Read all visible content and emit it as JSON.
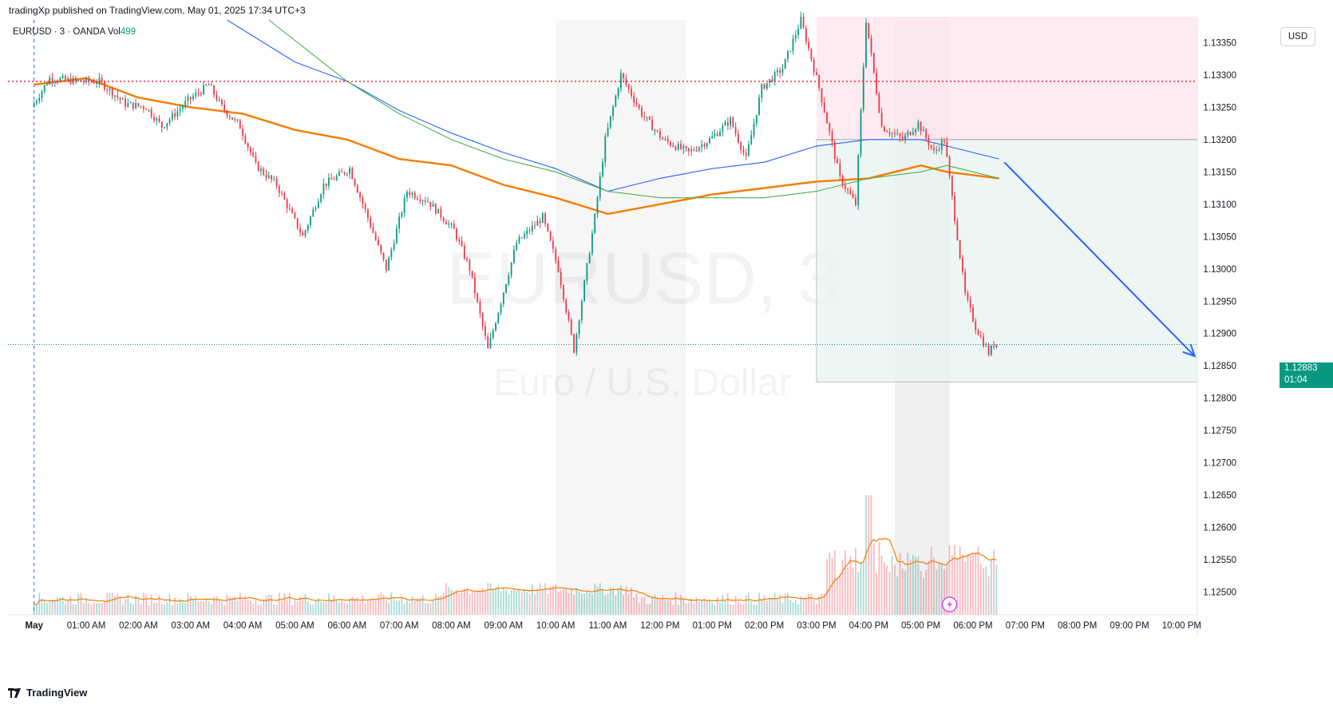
{
  "header": {
    "published": "tradingXp published on TradingView.com, May 01, 2025 17:34 UTC+3"
  },
  "legend": {
    "symbol": "EURUSD · 3 · OANDA",
    "volume_label": "Vol",
    "volume_value": "499"
  },
  "watermark": {
    "symbol": "EURUSD, 3",
    "name": "Euro / U.S. Dollar"
  },
  "currency_badge": "USD",
  "last_price": {
    "value": "1.12883",
    "countdown": "01:04"
  },
  "branding": "TradingView",
  "colors": {
    "up": "#089981",
    "down": "#f23645",
    "ma_orange": "#f57c00",
    "ma_blue": "#2962ff",
    "ma_green": "#4caf50",
    "arrow": "#2962ff",
    "stop_zone": "#fce4ec",
    "target_zone": "#e8f4f1"
  },
  "chart_data": {
    "type": "candlestick",
    "symbol": "EURUSD",
    "timeframe": "3",
    "broker": "OANDA",
    "y_axis": {
      "ylim": [
        1.12465,
        1.13385
      ],
      "ticks": [
        "1.13350",
        "1.13300",
        "1.13250",
        "1.13200",
        "1.13150",
        "1.13100",
        "1.13050",
        "1.13000",
        "1.12950",
        "1.12900",
        "1.12850",
        "1.12800",
        "1.12750",
        "1.12700",
        "1.12650",
        "1.12600",
        "1.12550",
        "1.12500"
      ]
    },
    "x_axis": {
      "ticks": [
        "May",
        "01:00 AM",
        "02:00 AM",
        "03:00 AM",
        "04:00 AM",
        "05:00 AM",
        "06:00 AM",
        "07:00 AM",
        "08:00 AM",
        "09:00 AM",
        "10:00 AM",
        "11:00 AM",
        "12:00 PM",
        "01:00 PM",
        "02:00 PM",
        "03:00 PM",
        "04:00 PM",
        "05:00 PM",
        "06:00 PM",
        "07:00 PM",
        "08:00 PM",
        "09:00 PM",
        "10:00 PM"
      ],
      "range_hours": [
        -0.5,
        22.3
      ]
    },
    "price_path": [
      [
        0.0,
        1.1325
      ],
      [
        0.35,
        1.13295
      ],
      [
        0.9,
        1.1329
      ],
      [
        1.3,
        1.1329
      ],
      [
        1.8,
        1.13255
      ],
      [
        2.2,
        1.1325
      ],
      [
        2.5,
        1.1322
      ],
      [
        3.0,
        1.1326
      ],
      [
        3.4,
        1.13285
      ],
      [
        3.65,
        1.1325
      ],
      [
        4.0,
        1.1322
      ],
      [
        4.3,
        1.1316
      ],
      [
        4.7,
        1.1313
      ],
      [
        5.2,
        1.1305
      ],
      [
        5.6,
        1.1313
      ],
      [
        6.1,
        1.13155
      ],
      [
        6.4,
        1.1309
      ],
      [
        6.8,
        1.13
      ],
      [
        7.2,
        1.1312
      ],
      [
        7.6,
        1.13105
      ],
      [
        8.1,
        1.1306
      ],
      [
        8.4,
        1.13
      ],
      [
        8.75,
        1.12875
      ],
      [
        9.3,
        1.1304
      ],
      [
        9.8,
        1.1308
      ],
      [
        10.1,
        1.13
      ],
      [
        10.4,
        1.12875
      ],
      [
        10.8,
        1.1308
      ],
      [
        11.0,
        1.132
      ],
      [
        11.3,
        1.133
      ],
      [
        11.7,
        1.1324
      ],
      [
        12.1,
        1.132
      ],
      [
        12.6,
        1.1318
      ],
      [
        13.0,
        1.132
      ],
      [
        13.4,
        1.1323
      ],
      [
        13.7,
        1.1317
      ],
      [
        14.0,
        1.1328
      ],
      [
        14.4,
        1.1331
      ],
      [
        14.75,
        1.13385
      ],
      [
        15.1,
        1.1328
      ],
      [
        15.5,
        1.1314
      ],
      [
        15.8,
        1.131
      ],
      [
        16.0,
        1.13385
      ],
      [
        16.3,
        1.1322
      ],
      [
        16.7,
        1.132
      ],
      [
        17.0,
        1.13225
      ],
      [
        17.3,
        1.1318
      ],
      [
        17.5,
        1.132
      ],
      [
        17.7,
        1.1308
      ],
      [
        17.9,
        1.1296
      ],
      [
        18.1,
        1.1291
      ],
      [
        18.35,
        1.1287
      ],
      [
        18.45,
        1.12883
      ]
    ],
    "volume_ylim": [
      0,
      1000
    ],
    "volume_max": 750,
    "moving_averages": [
      {
        "name": "MA orange",
        "points": [
          [
            0,
            1.13285
          ],
          [
            1,
            1.13295
          ],
          [
            2,
            1.13265
          ],
          [
            3,
            1.1325
          ],
          [
            4,
            1.1324
          ],
          [
            5,
            1.13215
          ],
          [
            6,
            1.132
          ],
          [
            7,
            1.1317
          ],
          [
            8,
            1.1316
          ],
          [
            9,
            1.1313
          ],
          [
            10,
            1.1311
          ],
          [
            11,
            1.13085
          ],
          [
            12,
            1.131
          ],
          [
            13,
            1.13115
          ],
          [
            14,
            1.13125
          ],
          [
            15,
            1.13135
          ],
          [
            16,
            1.1314
          ],
          [
            17,
            1.1316
          ],
          [
            17.5,
            1.1315
          ],
          [
            18.5,
            1.1314
          ]
        ]
      },
      {
        "name": "MA blue",
        "points": [
          [
            3.7,
            1.13385
          ],
          [
            5,
            1.1332
          ],
          [
            6,
            1.1329
          ],
          [
            7,
            1.13245
          ],
          [
            8,
            1.1321
          ],
          [
            9,
            1.1318
          ],
          [
            10,
            1.13155
          ],
          [
            11,
            1.1312
          ],
          [
            12,
            1.1314
          ],
          [
            13,
            1.13155
          ],
          [
            14,
            1.13165
          ],
          [
            15,
            1.1319
          ],
          [
            16,
            1.132
          ],
          [
            17,
            1.132
          ],
          [
            17.5,
            1.1319
          ],
          [
            18.5,
            1.1317
          ]
        ]
      },
      {
        "name": "MA green",
        "points": [
          [
            4.5,
            1.13385
          ],
          [
            6,
            1.1329
          ],
          [
            7,
            1.1324
          ],
          [
            8,
            1.132
          ],
          [
            9,
            1.1317
          ],
          [
            10,
            1.1315
          ],
          [
            11,
            1.1312
          ],
          [
            12,
            1.1311
          ],
          [
            13,
            1.1311
          ],
          [
            14,
            1.1311
          ],
          [
            15,
            1.1312
          ],
          [
            16,
            1.1314
          ],
          [
            17,
            1.1315
          ],
          [
            17.5,
            1.1316
          ],
          [
            18.5,
            1.1314
          ]
        ]
      }
    ],
    "horizontal_lines": [
      {
        "price": 1.1329,
        "style": "dotted",
        "color": "#f23645"
      },
      {
        "price": 1.12883,
        "style": "dotted",
        "color": "#089981"
      }
    ],
    "position_tool": {
      "type": "short",
      "start_hour": 15.0,
      "end_hour": 22.3,
      "entry": 1.132,
      "stop": 1.1339,
      "target": 1.12825
    },
    "session_shades": [
      [
        10.0,
        12.5
      ],
      [
        16.5,
        17.55
      ]
    ],
    "projection_arrow": {
      "from": [
        18.6,
        1.13165
      ],
      "to": [
        22.25,
        1.12865
      ]
    },
    "vertical_marker_hour": 0.0,
    "last_price": 1.12883
  }
}
